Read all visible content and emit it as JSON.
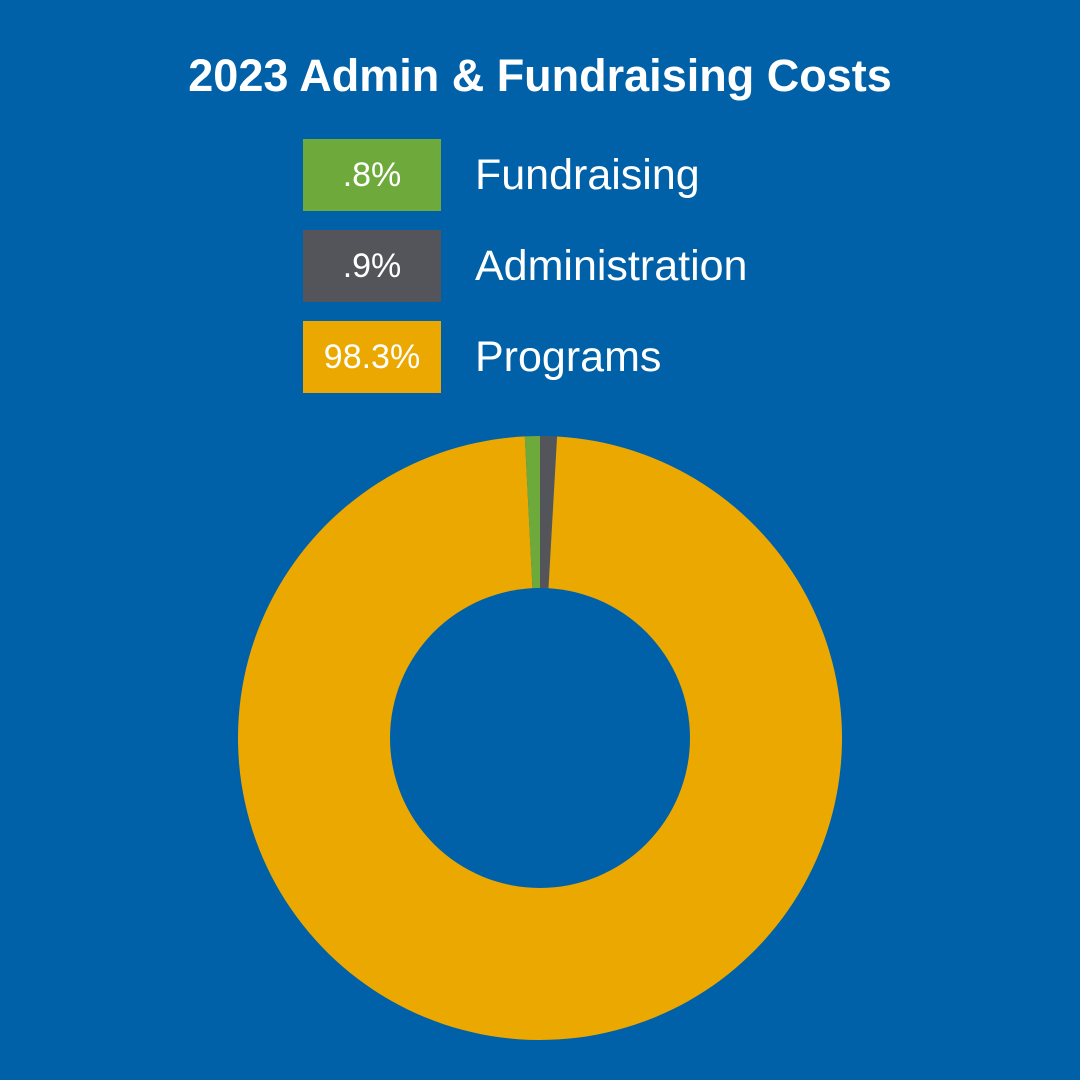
{
  "title": "2023 Admin & Fundraising Costs",
  "colors": {
    "background": "#0061a8",
    "fundraising": "#6ea93b",
    "administration": "#54555a",
    "programs": "#eba800"
  },
  "legend": [
    {
      "value_label": ".8%",
      "label": "Fundraising",
      "color": "#6ea93b"
    },
    {
      "value_label": ".9%",
      "label": "Administration",
      "color": "#54555a"
    },
    {
      "value_label": "98.3%",
      "label": "Programs",
      "color": "#eba800"
    }
  ],
  "chart_data": {
    "type": "pie",
    "variant": "donut",
    "title": "2023 Admin & Fundraising Costs",
    "categories": [
      "Fundraising",
      "Administration",
      "Programs"
    ],
    "values": [
      0.8,
      0.9,
      98.3
    ],
    "unit": "%",
    "colors": [
      "#6ea93b",
      "#54555a",
      "#eba800"
    ],
    "start_angle": "top",
    "direction": "clockwise",
    "order": [
      "Administration",
      "Programs",
      "Fundraising"
    ],
    "legend_position": "top"
  }
}
